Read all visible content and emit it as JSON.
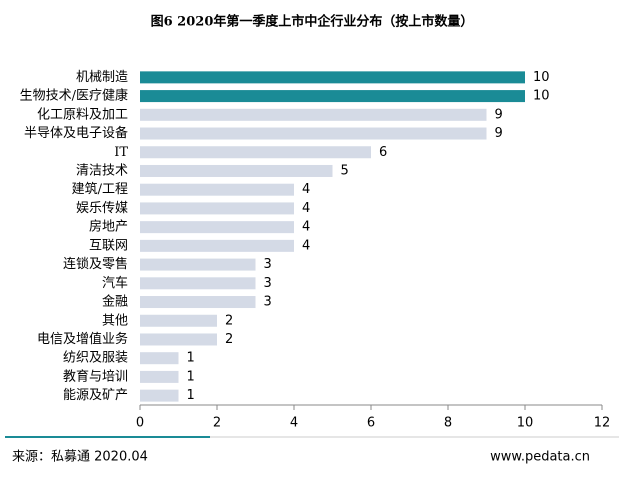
{
  "chart_data": {
    "type": "barh",
    "title": "图6 2020年第一季度上市中企行业分布（按上市数量）",
    "categories": [
      "机械制造",
      "生物技术/医疗健康",
      "化工原料及加工",
      "半导体及电子设备",
      "IT",
      "清洁技术",
      "建筑/工程",
      "娱乐传媒",
      "房地产",
      "互联网",
      "连锁及零售",
      "汽车",
      "金融",
      "其他",
      "电信及增值业务",
      "纺织及服装",
      "教育与培训",
      "能源及矿产"
    ],
    "values": [
      10,
      10,
      9,
      9,
      6,
      5,
      4,
      4,
      4,
      4,
      3,
      3,
      3,
      2,
      2,
      1,
      1,
      1
    ],
    "colors": [
      "#1a8b96",
      "#1a8b96",
      "#d4dae6",
      "#d4dae6",
      "#d4dae6",
      "#d4dae6",
      "#d4dae6",
      "#d4dae6",
      "#d4dae6",
      "#d4dae6",
      "#d4dae6",
      "#d4dae6",
      "#d4dae6",
      "#d4dae6",
      "#d4dae6",
      "#d4dae6",
      "#d4dae6",
      "#d4dae6"
    ],
    "xlim": [
      0,
      12
    ],
    "xticks": [
      0,
      2,
      4,
      6,
      8,
      10,
      12
    ],
    "grid": false,
    "source": "来源：私募通 2020.04",
    "website": "www.pedata.cn"
  }
}
